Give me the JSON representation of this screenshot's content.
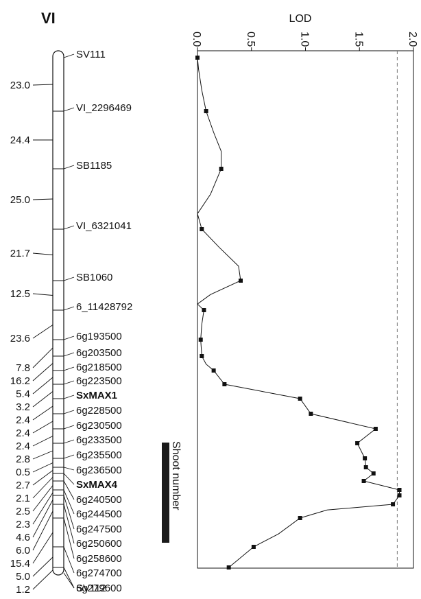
{
  "chart_data": {
    "type": "line",
    "linkage_group": "VI",
    "xlabel": "LOD",
    "xlim": [
      0,
      2.0
    ],
    "x_ticks": [
      "0.0",
      "0.5",
      "1.0",
      "1.5",
      "2.0"
    ],
    "threshold": 1.85,
    "qtl_label": "Shoot number",
    "interval_distances": [
      "23.0",
      "24.4",
      "25.0",
      "21.7",
      "12.5",
      "23.6",
      "7.8",
      "16.2",
      "5.4",
      "3.2",
      "2.4",
      "2.4",
      "2.4",
      "2.8",
      "0.5",
      "2.7",
      "2.1",
      "2.5",
      "2.3",
      "4.6",
      "6.0",
      "15.4",
      "5.0",
      "1.2"
    ],
    "markers": [
      {
        "name": "SV111",
        "bold": false,
        "cm": 0.0,
        "lod": 0.0
      },
      {
        "name": "VI_2296469",
        "bold": false,
        "cm": 23.0,
        "lod": 0.08
      },
      {
        "name": "SB1185",
        "bold": false,
        "cm": 47.4,
        "lod": 0.22
      },
      {
        "name": "VI_6321041",
        "bold": false,
        "cm": 72.4,
        "lod": 0.04
      },
      {
        "name": "SB1060",
        "bold": false,
        "cm": 94.1,
        "lod": 0.4
      },
      {
        "name": "6_11428792",
        "bold": false,
        "cm": 106.6,
        "lod": 0.06
      },
      {
        "name": "6g193500",
        "bold": false,
        "cm": 130.2,
        "lod": 0.03
      },
      {
        "name": "6g203500",
        "bold": false,
        "cm": 138.0,
        "lod": 0.04
      },
      {
        "name": "6g218500",
        "bold": false,
        "cm": 154.2,
        "lod": 0.15
      },
      {
        "name": "6g223500",
        "bold": false,
        "cm": 159.6,
        "lod": 0.25
      },
      {
        "name": "SxMAX1",
        "bold": true,
        "cm": 162.8,
        "lod": 0.95
      },
      {
        "name": "6g228500",
        "bold": false,
        "cm": 165.2,
        "lod": 1.05
      },
      {
        "name": "6g230500",
        "bold": false,
        "cm": 167.6,
        "lod": 1.65
      },
      {
        "name": "6g233500",
        "bold": false,
        "cm": 170.0,
        "lod": 1.48
      },
      {
        "name": "6g235500",
        "bold": false,
        "cm": 172.8,
        "lod": 1.55
      },
      {
        "name": "6g236500",
        "bold": false,
        "cm": 173.3,
        "lod": 1.56
      },
      {
        "name": "SxMAX4",
        "bold": true,
        "cm": 176.0,
        "lod": 1.63
      },
      {
        "name": "6g240500",
        "bold": false,
        "cm": 178.1,
        "lod": 1.54
      },
      {
        "name": "6g244500",
        "bold": false,
        "cm": 180.6,
        "lod": 1.87
      },
      {
        "name": "6g247500",
        "bold": false,
        "cm": 182.9,
        "lod": 1.87
      },
      {
        "name": "6g250600",
        "bold": false,
        "cm": 187.5,
        "lod": 1.81
      },
      {
        "name": "6g258600",
        "bold": false,
        "cm": 193.5,
        "lod": 0.95
      },
      {
        "name": "6g274700",
        "bold": false,
        "cm": 208.9,
        "lod": 0.52
      },
      {
        "name": "6g279600",
        "bold": false,
        "cm": 213.9,
        "lod": 0.29
      },
      {
        "name": "SV112",
        "bold": false,
        "cm": 215.1,
        "lod": null
      }
    ],
    "lod_profile": [
      {
        "cm": 0.0,
        "lod": 0.0
      },
      {
        "cm": 5.0,
        "lod": 0.01
      },
      {
        "cm": 14.0,
        "lod": 0.04
      },
      {
        "cm": 23.0,
        "lod": 0.08
      },
      {
        "cm": 32.0,
        "lod": 0.15
      },
      {
        "cm": 40.0,
        "lod": 0.22
      },
      {
        "cm": 47.4,
        "lod": 0.22
      },
      {
        "cm": 58.0,
        "lod": 0.12
      },
      {
        "cm": 66.0,
        "lod": 0.0
      },
      {
        "cm": 72.4,
        "lod": 0.04
      },
      {
        "cm": 80.0,
        "lod": 0.2
      },
      {
        "cm": 88.0,
        "lod": 0.38
      },
      {
        "cm": 94.1,
        "lod": 0.4
      },
      {
        "cm": 100.0,
        "lod": 0.12
      },
      {
        "cm": 104.0,
        "lod": 0.0
      },
      {
        "cm": 106.6,
        "lod": 0.06
      },
      {
        "cm": 118.0,
        "lod": 0.04
      },
      {
        "cm": 130.2,
        "lod": 0.03
      },
      {
        "cm": 138.0,
        "lod": 0.04
      },
      {
        "cm": 147.0,
        "lod": 0.08
      },
      {
        "cm": 154.2,
        "lod": 0.15
      },
      {
        "cm": 159.6,
        "lod": 0.25
      },
      {
        "cm": 162.8,
        "lod": 0.95
      },
      {
        "cm": 165.2,
        "lod": 1.05
      },
      {
        "cm": 167.6,
        "lod": 1.65
      },
      {
        "cm": 170.0,
        "lod": 1.48
      },
      {
        "cm": 172.8,
        "lod": 1.55
      },
      {
        "cm": 173.3,
        "lod": 1.56
      },
      {
        "cm": 176.0,
        "lod": 1.63
      },
      {
        "cm": 178.1,
        "lod": 1.54
      },
      {
        "cm": 180.6,
        "lod": 1.87
      },
      {
        "cm": 182.9,
        "lod": 1.87
      },
      {
        "cm": 187.5,
        "lod": 1.81
      },
      {
        "cm": 190.0,
        "lod": 1.2
      },
      {
        "cm": 193.5,
        "lod": 0.95
      },
      {
        "cm": 202.0,
        "lod": 0.75
      },
      {
        "cm": 208.9,
        "lod": 0.52
      },
      {
        "cm": 213.9,
        "lod": 0.29
      }
    ]
  },
  "colors": {
    "line": "#111111",
    "threshold": "#777777",
    "qtl_bar": "#1a1a1a"
  }
}
